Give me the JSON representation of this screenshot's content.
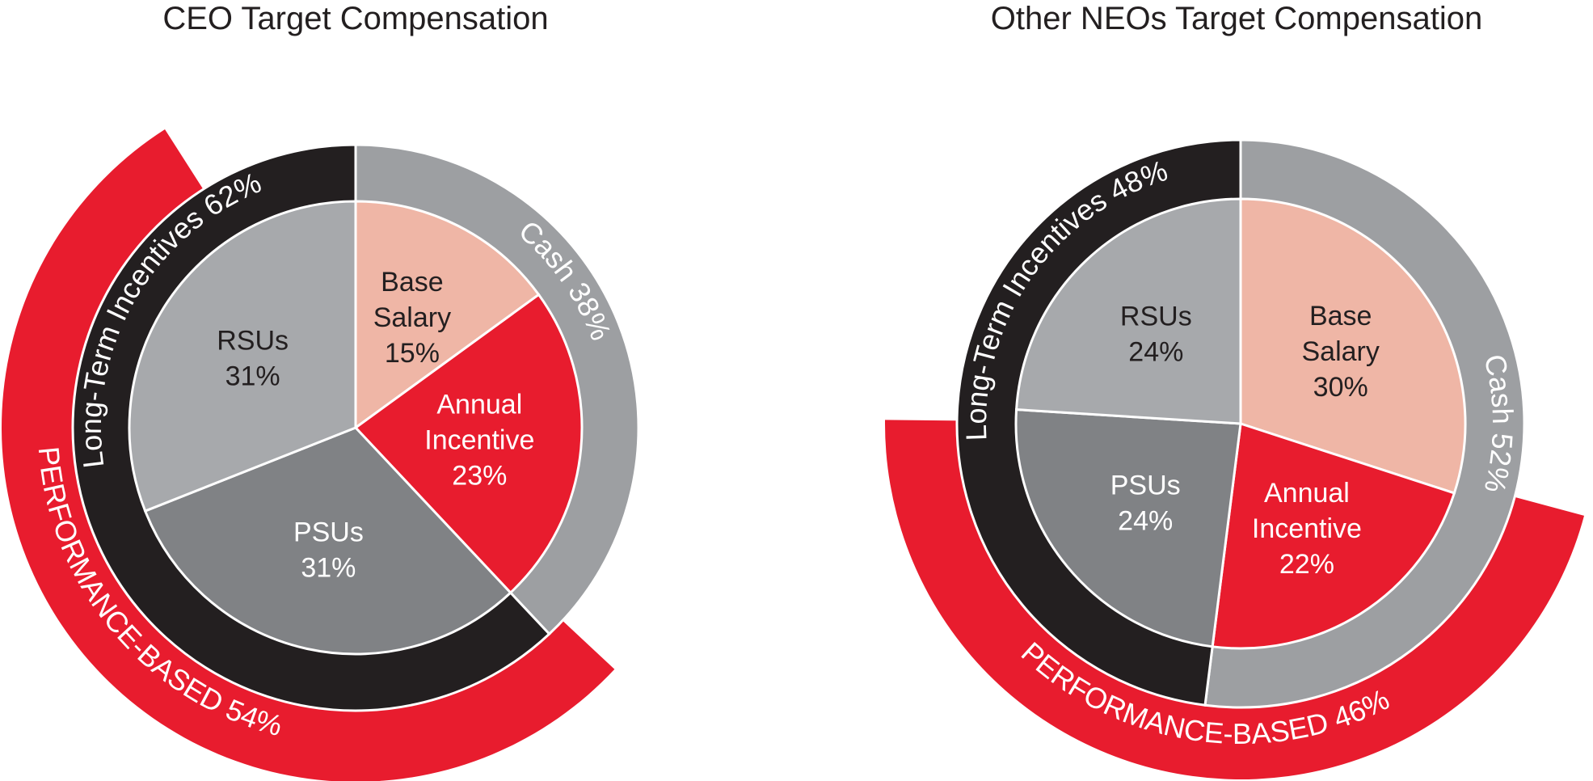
{
  "colors": {
    "base_salary": "#efb6a6",
    "annual_incentive": "#e81c2e",
    "rsus": "#a7a9ac",
    "psus": "#808285",
    "cash_ring": "#9d9fa2",
    "lti_ring": "#231f20",
    "performance_band": "#e81c2e",
    "text_dark": "#231f20",
    "text_light": "#ffffff"
  },
  "chart_data": [
    {
      "type": "pie",
      "title": "CEO Target Compensation",
      "slices": [
        {
          "name": "Base Salary",
          "lines": [
            "Base",
            "Salary",
            "15%"
          ],
          "value": 15,
          "color_key": "base_salary",
          "text": "dark"
        },
        {
          "name": "Annual Incentive",
          "lines": [
            "Annual",
            "Incentive",
            "23%"
          ],
          "value": 23,
          "color_key": "annual_incentive",
          "text": "light"
        },
        {
          "name": "PSUs",
          "lines": [
            "PSUs",
            "31%"
          ],
          "value": 31,
          "color_key": "psus",
          "text": "light"
        },
        {
          "name": "RSUs",
          "lines": [
            "RSUs",
            "31%"
          ],
          "value": 31,
          "color_key": "rsus",
          "text": "dark"
        }
      ],
      "rings": [
        {
          "name": "Cash",
          "label": "Cash 38%",
          "value": 38,
          "color_key": "cash_ring"
        },
        {
          "name": "Long-Term Incentives",
          "label": "Long-Term Incentives 62%",
          "value": 62,
          "color_key": "lti_ring"
        }
      ],
      "performance_band": {
        "label": "PERFORMANCE-BASED 54%",
        "value": 54
      }
    },
    {
      "type": "pie",
      "title": "Other NEOs Target Compensation",
      "slices": [
        {
          "name": "Base Salary",
          "lines": [
            "Base",
            "Salary",
            "30%"
          ],
          "value": 30,
          "color_key": "base_salary",
          "text": "dark"
        },
        {
          "name": "Annual Incentive",
          "lines": [
            "Annual",
            "Incentive",
            "22%"
          ],
          "value": 22,
          "color_key": "annual_incentive",
          "text": "light"
        },
        {
          "name": "PSUs",
          "lines": [
            "PSUs",
            "24%"
          ],
          "value": 24,
          "color_key": "psus",
          "text": "light"
        },
        {
          "name": "RSUs",
          "lines": [
            "RSUs",
            "24%"
          ],
          "value": 24,
          "color_key": "rsus",
          "text": "dark"
        }
      ],
      "rings": [
        {
          "name": "Cash",
          "label": "Cash 52%",
          "value": 52,
          "color_key": "cash_ring"
        },
        {
          "name": "Long-Term Incentives",
          "label": "Long-Term Incentives 48%",
          "value": 48,
          "color_key": "lti_ring"
        }
      ],
      "performance_band": {
        "label": "PERFORMANCE-BASED 46%",
        "value": 46
      }
    }
  ]
}
